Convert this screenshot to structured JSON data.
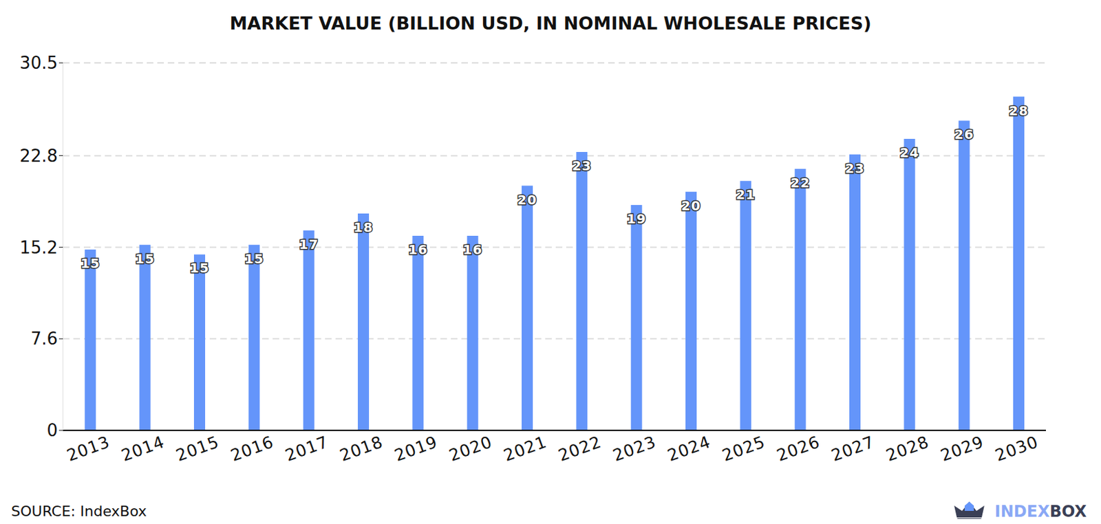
{
  "chart_data": {
    "type": "bar",
    "title": "MARKET VALUE (BILLION USD, IN NOMINAL WHOLESALE PRICES)",
    "categories": [
      "2013",
      "2014",
      "2015",
      "2016",
      "2017",
      "2018",
      "2019",
      "2020",
      "2021",
      "2022",
      "2023",
      "2024",
      "2025",
      "2026",
      "2027",
      "2028",
      "2029",
      "2030"
    ],
    "values": [
      15.0,
      15.4,
      14.6,
      15.4,
      16.6,
      18.0,
      16.15,
      16.15,
      20.3,
      23.1,
      18.7,
      19.8,
      20.7,
      21.7,
      22.9,
      24.2,
      25.7,
      27.7
    ],
    "value_labels": [
      "15",
      "15",
      "15",
      "15",
      "17",
      "18",
      "16",
      "16",
      "20",
      "23",
      "19",
      "20",
      "21",
      "22",
      "23",
      "24",
      "26",
      "28"
    ],
    "color": "#6495fa",
    "ylim": [
      0,
      30.5
    ],
    "yticks": [
      0,
      7.6,
      15.2,
      22.8,
      30.5
    ],
    "grid": true,
    "data_labels": true,
    "source": "SOURCE: IndexBox",
    "logo": "INDEXBOX"
  }
}
